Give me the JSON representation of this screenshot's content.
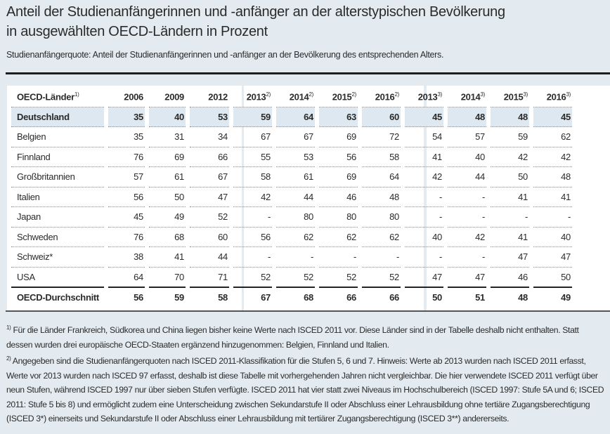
{
  "title_line1": "Anteil der Studienanfängerinnen und -anfänger an der alterstypischen Bevölkerung",
  "title_line2": "in ausgewählten OECD-Ländern in Prozent",
  "subtitle": "Studienanfängerquote: Anteil der Studienanfängerinnen und -anfänger an der Bevölkerung des entsprechenden Alters.",
  "table": {
    "headers": [
      {
        "label": "OECD-Länder",
        "sup": "1)"
      },
      {
        "label": "2006",
        "sup": ""
      },
      {
        "label": "2009",
        "sup": ""
      },
      {
        "label": "2012",
        "sup": ""
      },
      {
        "label": "2013",
        "sup": "2)"
      },
      {
        "label": "2014",
        "sup": "2)"
      },
      {
        "label": "2015",
        "sup": "2)"
      },
      {
        "label": "2016",
        "sup": "2)"
      },
      {
        "label": "2013",
        "sup": "3)"
      },
      {
        "label": "2014",
        "sup": "3)"
      },
      {
        "label": "2015",
        "sup": "3)"
      },
      {
        "label": "2016",
        "sup": "3)"
      }
    ],
    "rows": [
      [
        "Deutschland",
        "35",
        "40",
        "53",
        "59",
        "64",
        "63",
        "60",
        "45",
        "48",
        "48",
        "45"
      ],
      [
        "Belgien",
        "35",
        "31",
        "34",
        "67",
        "67",
        "69",
        "72",
        "54",
        "57",
        "59",
        "62"
      ],
      [
        "Finnland",
        "76",
        "69",
        "66",
        "55",
        "53",
        "56",
        "58",
        "41",
        "40",
        "42",
        "42"
      ],
      [
        "Großbritannien",
        "57",
        "61",
        "67",
        "58",
        "61",
        "69",
        "64",
        "42",
        "44",
        "50",
        "48"
      ],
      [
        "Italien",
        "56",
        "50",
        "47",
        "42",
        "44",
        "46",
        "48",
        "-",
        "-",
        "41",
        "41"
      ],
      [
        "Japan",
        "45",
        "49",
        "52",
        "-",
        "80",
        "80",
        "80",
        "-",
        "-",
        "-",
        "-"
      ],
      [
        "Schweden",
        "76",
        "68",
        "60",
        "56",
        "62",
        "62",
        "62",
        "40",
        "42",
        "41",
        "40"
      ],
      [
        "Schweiz*",
        "38",
        "41",
        "44",
        "-",
        "-",
        "-",
        "-",
        "-",
        "-",
        "47",
        "47"
      ],
      [
        "USA",
        "64",
        "70",
        "71",
        "52",
        "52",
        "52",
        "52",
        "47",
        "47",
        "46",
        "50"
      ]
    ],
    "average": [
      "OECD-Durchschnitt",
      "56",
      "59",
      "58",
      "67",
      "68",
      "66",
      "66",
      "50",
      "51",
      "48",
      "49"
    ]
  },
  "footnotes": [
    {
      "sup": "1)",
      "text": " Für die Länder Frankreich, Südkorea und China liegen bisher keine Werte nach ISCED 2011 vor. Diese Länder sind in der Tabelle deshalb nicht enthalten. Statt dessen wurden drei europäische OECD-Staaten ergänzend hinzugenommen: Belgien, Finnland und Italien."
    },
    {
      "sup": "2)",
      "text": " Angegeben sind die Studienanfängerquoten nach ISCED 2011-Klassifikation für die Stufen 5, 6 und 7. Hinweis: Werte ab 2013 wurden nach ISCED 2011 erfasst, Werte vor 2013 wurden nach ISCED 97 erfasst, deshalb ist diese Tabelle mit vorhergehenden Jahren nicht vergleichbar. Die hier verwendete ISCED 2011 verfügt über neun Stufen, während ISCED 1997 nur über sieben Stufen verfügte. ISCED 2011 hat vier statt zwei Niveaus im Hochschulbereich (ISCED 1997: Stufe 5A und 6; ISCED 2011: Stufe 5 bis 8) und ermöglicht zudem eine Unterscheidung zwischen Sekundarstufe II oder Abschluss einer Lehrausbildung ohne tertiäre Zugangsberechtigung (ISCED 3*) einerseits und Sekundarstufe II oder Abschluss einer Lehrausbildung mit tertiärer Zugangsberechtigung (ISCED 3**) andererseits."
    }
  ],
  "colors": {
    "background": "#e3ebf0",
    "highlight_row": "#dde8f0",
    "text": "#2b2b2b"
  }
}
